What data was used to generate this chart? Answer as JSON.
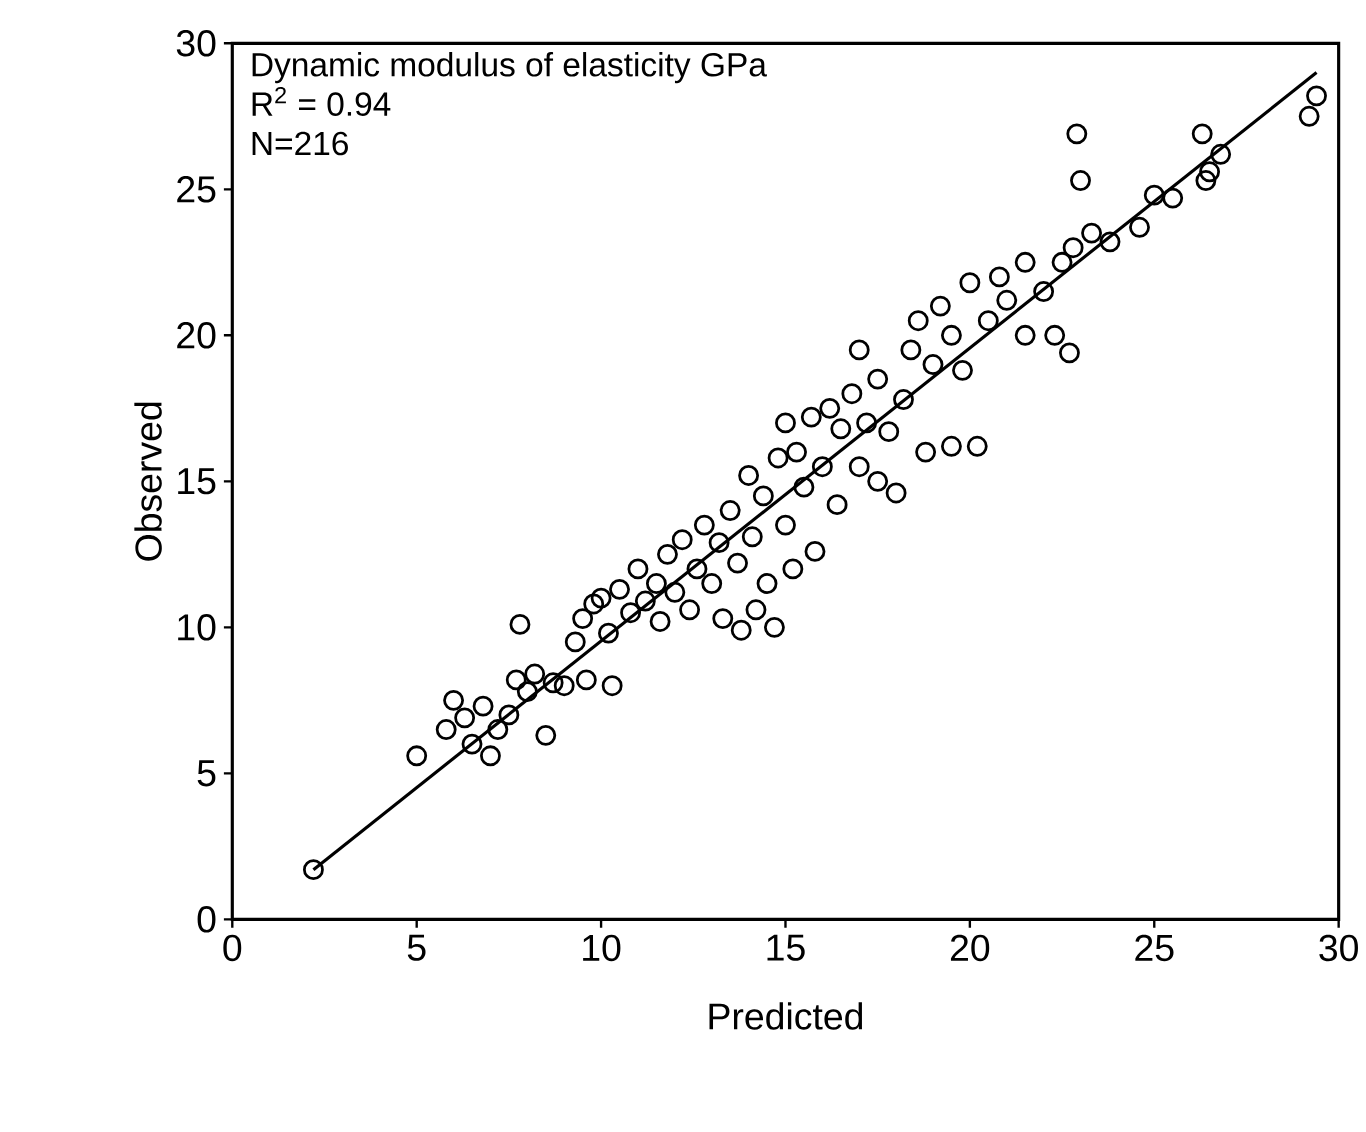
{
  "chart_data": {
    "type": "scatter",
    "title": "Dynamic modulus of elasticity  GPa",
    "annotations": [
      "R$^{2}$ = 0.94",
      "N=216"
    ],
    "xlabel": "Predicted",
    "ylabel": "Observed",
    "xlim": [
      0,
      30
    ],
    "ylim": [
      0,
      30
    ],
    "xticks": [
      0,
      5,
      10,
      15,
      20,
      25,
      30
    ],
    "yticks": [
      0,
      5,
      10,
      15,
      20,
      25,
      30
    ],
    "grid": false,
    "series": [
      {
        "color": "#000000",
        "marker": "circle",
        "x": [
          2.2,
          5.0,
          5.8,
          6.0,
          6.3,
          6.5,
          6.8,
          7.0,
          7.2,
          7.5,
          7.7,
          7.8,
          8.0,
          8.2,
          8.5,
          8.7,
          9.0,
          9.3,
          9.5,
          9.6,
          9.8,
          10.0,
          10.2,
          10.3,
          10.5,
          10.8,
          11.0,
          11.2,
          11.5,
          11.6,
          11.8,
          12.0,
          12.2,
          12.4,
          12.6,
          12.8,
          13.0,
          13.2,
          13.3,
          13.5,
          13.7,
          13.8,
          14.0,
          14.1,
          14.2,
          14.4,
          14.5,
          14.7,
          14.8,
          15.0,
          15.0,
          15.2,
          15.3,
          15.5,
          15.7,
          15.8,
          16.0,
          16.2,
          16.4,
          16.5,
          16.8,
          17.0,
          17.0,
          17.2,
          17.5,
          17.5,
          17.8,
          18.0,
          18.2,
          18.4,
          18.6,
          18.8,
          19.0,
          19.2,
          19.5,
          19.5,
          19.8,
          20.0,
          20.2,
          20.5,
          20.8,
          21.0,
          21.5,
          21.5,
          22.0,
          22.3,
          22.5,
          22.7,
          22.8,
          22.9,
          23.0,
          23.3,
          23.8,
          24.6,
          25.0,
          25.5,
          26.3,
          26.4,
          26.5,
          26.8,
          29.2,
          29.4
        ],
        "values": [
          1.7,
          5.6,
          6.5,
          7.5,
          6.9,
          6.0,
          7.3,
          5.6,
          6.5,
          7.0,
          8.2,
          10.1,
          7.8,
          8.4,
          6.3,
          8.1,
          8.0,
          9.5,
          10.3,
          8.2,
          10.8,
          11.0,
          9.8,
          8.0,
          11.3,
          10.5,
          12.0,
          10.9,
          11.5,
          10.2,
          12.5,
          11.2,
          13.0,
          10.6,
          12.0,
          13.5,
          11.5,
          12.9,
          10.3,
          14.0,
          12.2,
          9.9,
          15.2,
          13.1,
          10.6,
          14.5,
          11.5,
          10.0,
          15.8,
          13.5,
          17.0,
          12.0,
          16.0,
          14.8,
          17.2,
          12.6,
          15.5,
          17.5,
          14.2,
          16.8,
          18.0,
          15.5,
          19.5,
          17.0,
          18.5,
          15.0,
          16.7,
          14.6,
          17.8,
          19.5,
          20.5,
          16.0,
          19.0,
          21.0,
          16.2,
          20.0,
          18.8,
          21.8,
          16.2,
          20.5,
          22.0,
          21.2,
          22.5,
          20.0,
          21.5,
          20.0,
          22.5,
          19.4,
          23.0,
          26.9,
          25.3,
          23.5,
          23.2,
          23.7,
          24.8,
          24.7,
          26.9,
          25.3,
          25.6,
          26.2,
          27.5,
          28.2
        ]
      },
      {
        "type": "line",
        "color": "#000000",
        "marker": "none",
        "line_style": "solid",
        "x": [
          2.2,
          29.4
        ],
        "values": [
          1.7,
          29.0
        ]
      }
    ]
  }
}
